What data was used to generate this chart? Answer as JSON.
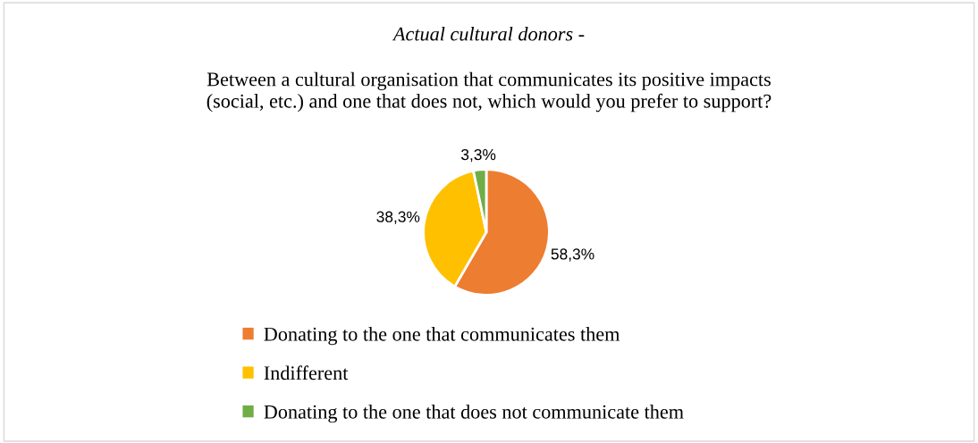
{
  "chart_data": {
    "type": "pie",
    "title": "Actual cultural donors -",
    "subtitle": "Between a cultural organisation that communicates its positive impacts\n(social, etc.) and one that does not, which would you prefer to support?",
    "categories": [
      "Donating to the one that communicates them",
      "Indifferent",
      "Donating to the one that does not communicate them"
    ],
    "values": [
      58.3,
      38.3,
      3.3
    ],
    "colors": [
      "#ed7d31",
      "#ffc000",
      "#70ad47"
    ],
    "value_labels": [
      "58,3%",
      "38,3%",
      "3,3%"
    ],
    "legend": "bottom"
  }
}
